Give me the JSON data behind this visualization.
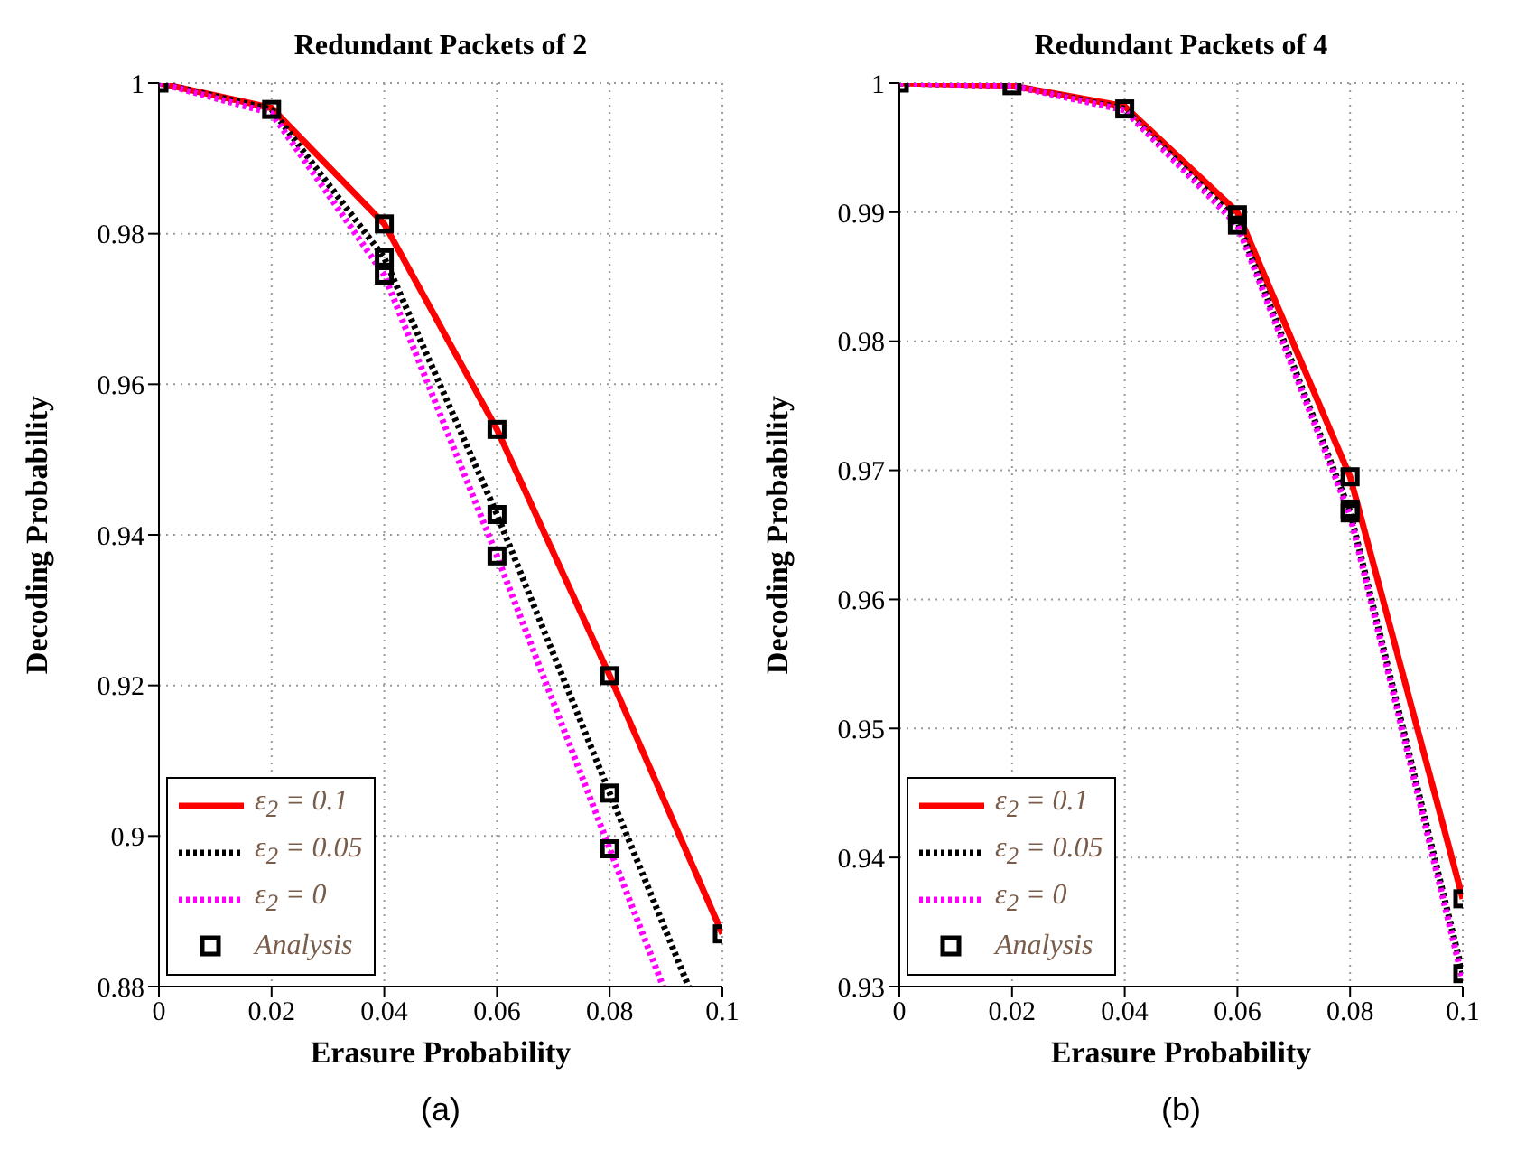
{
  "chart_data": [
    {
      "type": "line",
      "title": "Redundant Packets of 2",
      "xlabel": "Erasure Probability",
      "ylabel": "Decoding Probability",
      "x": [
        0,
        0.02,
        0.04,
        0.06,
        0.08,
        0.1
      ],
      "xlim": [
        0,
        0.1
      ],
      "xticks": [
        0,
        0.02,
        0.04,
        0.06,
        0.08,
        0.1
      ],
      "ylim": [
        0.88,
        1
      ],
      "yticks": [
        0.88,
        0.9,
        0.92,
        0.94,
        0.96,
        0.98,
        1
      ],
      "grid": true,
      "legend": "bottom left",
      "annotations": [
        "(a)"
      ],
      "series": [
        {
          "name": "ε$_{2}$ = 0.1",
          "color": "#ff0000",
          "line_style": "solid",
          "marker": "none",
          "values": [
            1,
            0.9967,
            0.9813,
            0.954,
            0.9213,
            0.887
          ]
        },
        {
          "name": "ε$_{2}$ = 0.05",
          "color": "#000000",
          "line_style": "dotted",
          "marker": "none",
          "x": [
            0,
            0.02,
            0.04,
            0.06,
            0.08,
            0.094
          ],
          "values": [
            1,
            0.9965,
            0.9768,
            0.9427,
            0.9057,
            0.88
          ]
        },
        {
          "name": "ε$_{2}$ = 0",
          "color": "#ff00ff",
          "line_style": "dotted",
          "marker": "none",
          "x": [
            0,
            0.02,
            0.04,
            0.06,
            0.08,
            0.0895
          ],
          "values": [
            1,
            0.996,
            0.9745,
            0.9372,
            0.8983,
            0.88
          ]
        },
        {
          "name": "Analysis",
          "type": "scatter",
          "color": "#000000",
          "marker": "square",
          "x": [
            0,
            0.02,
            0.04,
            0.04,
            0.04,
            0.06,
            0.06,
            0.06,
            0.08,
            0.08,
            0.08,
            0.1
          ],
          "values": [
            1,
            0.9965,
            0.9813,
            0.9768,
            0.9745,
            0.954,
            0.9427,
            0.9372,
            0.9213,
            0.9057,
            0.8983,
            0.887
          ]
        }
      ]
    },
    {
      "type": "line",
      "title": "Redundant Packets of 4",
      "xlabel": "Erasure Probability",
      "ylabel": "Decoding Probability",
      "x": [
        0,
        0.02,
        0.04,
        0.06,
        0.08,
        0.1
      ],
      "xlim": [
        0,
        0.1
      ],
      "xticks": [
        0,
        0.02,
        0.04,
        0.06,
        0.08,
        0.1
      ],
      "ylim": [
        0.93,
        1
      ],
      "yticks": [
        0.93,
        0.94,
        0.95,
        0.96,
        0.97,
        0.98,
        0.99,
        1
      ],
      "grid": true,
      "legend": "bottom left",
      "annotations": [
        "(b)"
      ],
      "series": [
        {
          "name": "ε$_{2}$ = 0.1",
          "color": "#ff0000",
          "line_style": "solid",
          "marker": "none",
          "values": [
            1,
            0.9998,
            0.9982,
            0.99,
            0.9695,
            0.9368
          ]
        },
        {
          "name": "ε$_{2}$ = 0.05",
          "color": "#000000",
          "line_style": "dotted",
          "marker": "none",
          "values": [
            1,
            0.9998,
            0.998,
            0.9893,
            0.9668,
            0.931
          ]
        },
        {
          "name": "ε$_{2}$ = 0",
          "color": "#ff00ff",
          "line_style": "dotted",
          "marker": "none",
          "values": [
            1,
            0.9998,
            0.9979,
            0.989,
            0.9665,
            0.9305
          ]
        },
        {
          "name": "Analysis",
          "type": "scatter",
          "color": "#000000",
          "marker": "square",
          "x": [
            0,
            0.02,
            0.04,
            0.06,
            0.06,
            0.08,
            0.08,
            0.08,
            0.1,
            0.1
          ],
          "values": [
            1,
            0.9998,
            0.998,
            0.9898,
            0.989,
            0.9695,
            0.967,
            0.9667,
            0.9368,
            0.931
          ]
        }
      ]
    }
  ]
}
